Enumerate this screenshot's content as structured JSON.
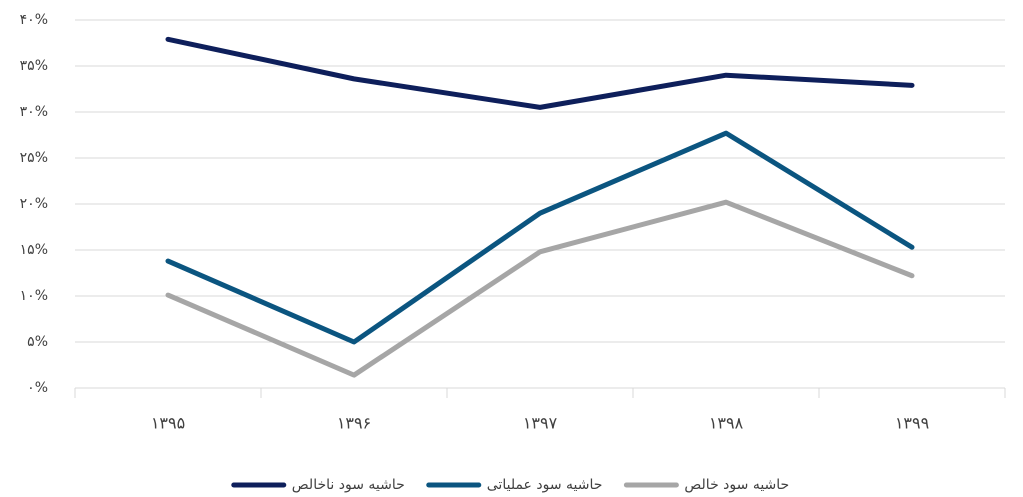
{
  "chart_data": {
    "type": "line",
    "categories": [
      "۱۳۹۵",
      "۱۳۹۶",
      "۱۳۹۷",
      "۱۳۹۸",
      "۱۳۹۹"
    ],
    "series": [
      {
        "name": "حاشیه سود ناخالص",
        "color": "#0e1f5b",
        "values": [
          37.9,
          33.6,
          30.5,
          34,
          32.9
        ]
      },
      {
        "name": "حاشیه سود عملیاتی",
        "color": "#0b5580",
        "values": [
          13.8,
          5,
          19,
          27.7,
          15.3
        ]
      },
      {
        "name": "حاشیه سود خالص",
        "color": "#a6a6a6",
        "values": [
          10.1,
          1.4,
          14.8,
          20.2,
          12.2
        ]
      }
    ],
    "ylim": [
      0,
      40
    ],
    "yticks": [
      {
        "value": 0,
        "label": "۰%"
      },
      {
        "value": 5,
        "label": "۵%"
      },
      {
        "value": 10,
        "label": "۱۰%"
      },
      {
        "value": 15,
        "label": "۱۵%"
      },
      {
        "value": 20,
        "label": "۲۰%"
      },
      {
        "value": 25,
        "label": "۲۵%"
      },
      {
        "value": 30,
        "label": "۳۰%"
      },
      {
        "value": 35,
        "label": "۳۵%"
      },
      {
        "value": 40,
        "label": "۴۰%"
      }
    ],
    "grid": true,
    "legend": "bottom"
  }
}
